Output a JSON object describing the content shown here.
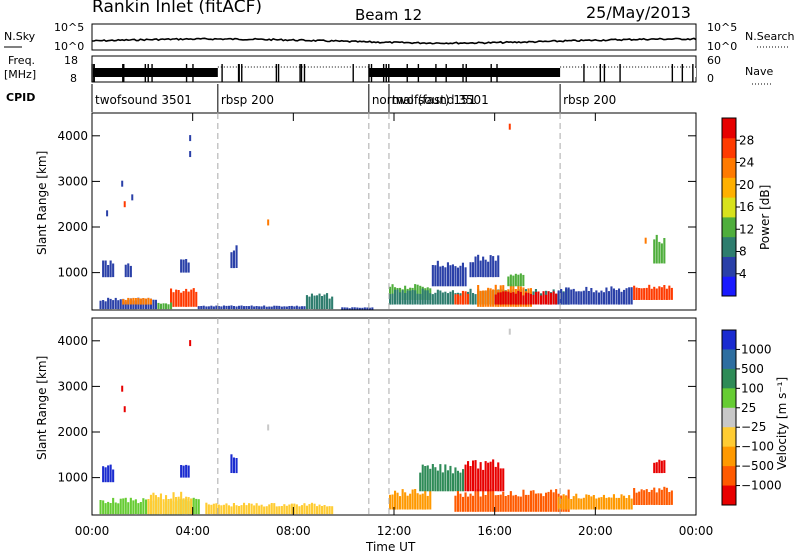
{
  "header": {
    "station": "Rankin Inlet (fitACF)",
    "beam": "Beam 12",
    "date": "25/May/2013"
  },
  "top_panels": {
    "nsky_label": "N.Sky",
    "nsky_ticks": [
      "10^5",
      "10^0"
    ],
    "nsearch_label": "N.Search",
    "nsearch_ticks": [
      "10^5",
      "10^0"
    ],
    "freq_label": "Freq.",
    "freq_unit": "[MHz]",
    "freq_ticks": [
      "18",
      "8"
    ],
    "nave_label": "Nave",
    "nave_ticks": [
      "60",
      "0"
    ],
    "cpid_label": "CPID",
    "cpid_segments": [
      {
        "start_h": 0.0,
        "end_h": 5.0,
        "label": "twofsound 3501"
      },
      {
        "start_h": 5.0,
        "end_h": 11.0,
        "label": "rbsp 200"
      },
      {
        "start_h": 11.0,
        "end_h": 11.8,
        "label": "normal (fast) 151"
      },
      {
        "start_h": 11.8,
        "end_h": 18.6,
        "label": "twofsound 3501"
      },
      {
        "start_h": 18.6,
        "end_h": 24.0,
        "label": "rbsp 200"
      }
    ]
  },
  "colors": {
    "power": [
      "#1a1aff",
      "#2a40a8",
      "#2e7d6e",
      "#4fae3c",
      "#d8e21c",
      "#ffb000",
      "#ff7a00",
      "#ff3a00",
      "#e60000"
    ],
    "velocity": [
      "#e80000",
      "#ff5a00",
      "#ff9900",
      "#ffcc33",
      "#c8c8c8",
      "#66cc33",
      "#2e8b57",
      "#2e6ea0",
      "#1a2bd0"
    ],
    "ground_scatter": "#9a9a9a"
  },
  "chart_data": [
    {
      "type": "heatmap",
      "name": "power",
      "ylabel": "Slant Range [km]",
      "ylim": [
        180,
        4500
      ],
      "yticks": [
        "1000",
        "2000",
        "3000",
        "4000"
      ],
      "x_unit": "hours UT",
      "xlim": [
        0,
        24
      ],
      "colorbar_label": "Power [dB]",
      "colorbar_range": [
        0,
        32
      ],
      "colorbar_ticks": [
        "4",
        "8",
        "12",
        "16",
        "20",
        "24",
        "28"
      ],
      "patches": [
        {
          "t0": 0.3,
          "t1": 2.6,
          "r0": 200,
          "r1": 450,
          "v": 7
        },
        {
          "t0": 1.2,
          "t1": 2.4,
          "r0": 300,
          "r1": 450,
          "v": 24
        },
        {
          "t0": 3.1,
          "t1": 4.2,
          "r0": 250,
          "r1": 700,
          "v": 26
        },
        {
          "t0": 2.6,
          "t1": 3.2,
          "r0": 200,
          "r1": 350,
          "v": 12
        },
        {
          "t0": 4.2,
          "t1": 8.5,
          "r0": 200,
          "r1": 280,
          "v": 5
        },
        {
          "t0": 8.5,
          "t1": 9.6,
          "r0": 200,
          "r1": 550,
          "v": 9
        },
        {
          "t0": 0.4,
          "t1": 0.9,
          "r0": 900,
          "r1": 1300,
          "v": 4
        },
        {
          "t0": 1.3,
          "t1": 1.6,
          "r0": 900,
          "r1": 1250,
          "v": 5
        },
        {
          "t0": 3.5,
          "t1": 3.9,
          "r0": 1000,
          "r1": 1300,
          "v": 6
        },
        {
          "t0": 5.5,
          "t1": 5.8,
          "r0": 1100,
          "r1": 1600,
          "v": 5
        },
        {
          "t0": 9.9,
          "t1": 11.2,
          "r0": 180,
          "r1": 240,
          "v": 4
        },
        {
          "t0": 11.8,
          "t1": 13.5,
          "r0": 400,
          "r1": 750,
          "v": 12
        },
        {
          "t0": 11.8,
          "t1": 19.0,
          "r0": 300,
          "r1": 650,
          "v": 8
        },
        {
          "t0": 13.5,
          "t1": 14.9,
          "r0": 700,
          "r1": 1300,
          "v": 6
        },
        {
          "t0": 14.4,
          "t1": 15.0,
          "r0": 300,
          "r1": 600,
          "v": 26
        },
        {
          "t0": 15.0,
          "t1": 16.2,
          "r0": 900,
          "r1": 1400,
          "v": 6
        },
        {
          "t0": 15.3,
          "t1": 17.5,
          "r0": 250,
          "r1": 750,
          "v": 23
        },
        {
          "t0": 16.0,
          "t1": 18.5,
          "r0": 300,
          "r1": 600,
          "v": 30
        },
        {
          "t0": 18.5,
          "t1": 21.5,
          "r0": 300,
          "r1": 700,
          "v": 7
        },
        {
          "t0": 21.5,
          "t1": 23.1,
          "r0": 400,
          "r1": 750,
          "v": 25
        },
        {
          "t0": 22.3,
          "t1": 22.8,
          "r0": 1200,
          "r1": 1850,
          "v": 11
        },
        {
          "t0": 16.5,
          "t1": 17.2,
          "r0": 700,
          "r1": 1000,
          "v": 14
        }
      ],
      "specks": [
        {
          "t": 3.9,
          "r": 3950,
          "v": 5
        },
        {
          "t": 3.9,
          "r": 3600,
          "v": 5
        },
        {
          "t": 1.2,
          "r": 2950,
          "v": 5
        },
        {
          "t": 1.3,
          "r": 2500,
          "v": 27
        },
        {
          "t": 0.6,
          "r": 2300,
          "v": 5
        },
        {
          "t": 1.6,
          "r": 2650,
          "v": 6
        },
        {
          "t": 16.6,
          "r": 4200,
          "v": 27
        },
        {
          "t": 7.0,
          "r": 2100,
          "v": 24
        },
        {
          "t": 22.0,
          "r": 1700,
          "v": 24
        }
      ]
    },
    {
      "type": "heatmap",
      "name": "velocity",
      "ylabel": "Slant Range [km]",
      "ylim": [
        180,
        4500
      ],
      "yticks": [
        "1000",
        "2000",
        "3000",
        "4000"
      ],
      "xlabel": "Time UT",
      "xlim": [
        0,
        24
      ],
      "xticks": [
        "00:00",
        "04:00",
        "08:00",
        "12:00",
        "16:00",
        "20:00",
        "00:00"
      ],
      "colorbar_label": "Velocity [m s⁻¹]",
      "colorbar_ticks": [
        "1000",
        "500",
        "100",
        "25",
        "−25",
        "−100",
        "−500",
        "−1000"
      ],
      "patches": [
        {
          "t0": 0.3,
          "t1": 4.3,
          "r0": 200,
          "r1": 560,
          "v": 5
        },
        {
          "t0": 2.2,
          "t1": 4.0,
          "r0": 200,
          "r1": 700,
          "v": 3
        },
        {
          "t0": 0.4,
          "t1": 0.9,
          "r0": 900,
          "r1": 1300,
          "v": 8
        },
        {
          "t0": 3.5,
          "t1": 3.9,
          "r0": 1000,
          "r1": 1300,
          "v": 8
        },
        {
          "t0": 5.5,
          "t1": 5.8,
          "r0": 1100,
          "r1": 1600,
          "v": 8
        },
        {
          "t0": 4.5,
          "t1": 9.6,
          "r0": 200,
          "r1": 450,
          "v": 3
        },
        {
          "t0": 11.8,
          "t1": 13.5,
          "r0": 300,
          "r1": 750,
          "v": 2
        },
        {
          "t0": 13.0,
          "t1": 14.8,
          "r0": 700,
          "r1": 1300,
          "v": 6
        },
        {
          "t0": 14.4,
          "t1": 19.0,
          "r0": 250,
          "r1": 750,
          "v": 1
        },
        {
          "t0": 14.8,
          "t1": 16.4,
          "r0": 700,
          "r1": 1400,
          "v": 0
        },
        {
          "t0": 18.5,
          "t1": 21.5,
          "r0": 300,
          "r1": 650,
          "v": 2
        },
        {
          "t0": 21.5,
          "t1": 23.1,
          "r0": 400,
          "r1": 800,
          "v": 1
        },
        {
          "t0": 22.3,
          "t1": 22.8,
          "r0": 1100,
          "r1": 1400,
          "v": 0
        }
      ],
      "specks": [
        {
          "t": 3.9,
          "r": 3950,
          "v": 0
        },
        {
          "t": 1.3,
          "r": 2500,
          "v": 0
        },
        {
          "t": 1.2,
          "r": 2950,
          "v": 0
        },
        {
          "t": 16.6,
          "r": 4200,
          "v": 4
        },
        {
          "t": 7.0,
          "r": 2100,
          "v": 4
        }
      ]
    }
  ]
}
